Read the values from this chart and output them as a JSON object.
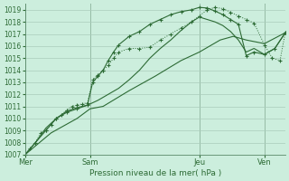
{
  "xlabel": "Pression niveau de la mer( hPa )",
  "background_color": "#cceedd",
  "grid_color": "#aaccbb",
  "line_color": "#2d6b35",
  "ylim": [
    1007,
    1019.5
  ],
  "yticks": [
    1007,
    1008,
    1009,
    1010,
    1011,
    1012,
    1013,
    1014,
    1015,
    1016,
    1017,
    1018,
    1019
  ],
  "xtick_labels": [
    "Mer",
    "Sam",
    "Jeu",
    "Ven"
  ],
  "xtick_positions": [
    0,
    0.25,
    0.67,
    0.92
  ],
  "vline_positions": [
    0.0,
    0.25,
    0.67,
    0.92
  ],
  "curve1_x": [
    0.0,
    0.02,
    0.04,
    0.06,
    0.08,
    0.1,
    0.12,
    0.14,
    0.16,
    0.18,
    0.2,
    0.22,
    0.24,
    0.26,
    0.28,
    0.3,
    0.32,
    0.34,
    0.36,
    0.4,
    0.44,
    0.48,
    0.52,
    0.56,
    0.6,
    0.64,
    0.67,
    0.7,
    0.73,
    0.76,
    0.79,
    0.82,
    0.85,
    0.88,
    0.92,
    0.95,
    0.98,
    1.0
  ],
  "curve1_y": [
    1007.0,
    1007.5,
    1008.0,
    1008.8,
    1009.0,
    1009.5,
    1010.0,
    1010.3,
    1010.7,
    1011.0,
    1011.1,
    1011.2,
    1011.3,
    1013.2,
    1013.6,
    1014.0,
    1014.4,
    1015.0,
    1015.5,
    1015.8,
    1015.8,
    1015.9,
    1016.5,
    1017.0,
    1017.5,
    1018.0,
    1018.5,
    1019.0,
    1019.2,
    1019.1,
    1018.8,
    1018.5,
    1018.2,
    1017.9,
    1016.1,
    1015.0,
    1014.8,
    1017.1
  ],
  "curve2_x": [
    0.0,
    0.04,
    0.08,
    0.12,
    0.16,
    0.2,
    0.24,
    0.26,
    0.28,
    0.3,
    0.32,
    0.34,
    0.36,
    0.4,
    0.44,
    0.48,
    0.52,
    0.56,
    0.6,
    0.64,
    0.67,
    0.7,
    0.73,
    0.76,
    0.79,
    0.82,
    0.85,
    0.88,
    0.92,
    0.96,
    1.0
  ],
  "curve2_y": [
    1007.0,
    1008.0,
    1009.0,
    1010.0,
    1010.5,
    1010.8,
    1011.1,
    1013.0,
    1013.5,
    1014.0,
    1014.8,
    1015.5,
    1016.1,
    1016.8,
    1017.2,
    1017.8,
    1018.2,
    1018.6,
    1018.85,
    1019.0,
    1019.2,
    1019.15,
    1018.9,
    1018.6,
    1018.2,
    1017.8,
    1015.2,
    1015.5,
    1015.3,
    1015.8,
    1017.1
  ],
  "curve3_x": [
    0.0,
    0.04,
    0.08,
    0.12,
    0.16,
    0.2,
    0.24,
    0.28,
    0.32,
    0.36,
    0.4,
    0.44,
    0.48,
    0.52,
    0.56,
    0.6,
    0.64,
    0.67,
    0.7,
    0.73,
    0.76,
    0.79,
    0.82,
    0.85,
    0.88,
    0.92,
    0.96,
    1.0
  ],
  "curve3_y": [
    1007.0,
    1008.0,
    1009.2,
    1010.0,
    1010.6,
    1010.9,
    1011.1,
    1011.5,
    1012.0,
    1012.5,
    1013.2,
    1014.0,
    1015.0,
    1015.8,
    1016.5,
    1017.3,
    1018.0,
    1018.4,
    1018.2,
    1018.0,
    1017.7,
    1017.2,
    1016.5,
    1015.5,
    1015.8,
    1015.3,
    1015.8,
    1017.1
  ],
  "curve4_x": [
    0.0,
    0.1,
    0.2,
    0.25,
    0.3,
    0.4,
    0.5,
    0.6,
    0.67,
    0.75,
    0.8,
    0.85,
    0.92,
    1.0
  ],
  "curve4_y": [
    1007.0,
    1008.8,
    1010.0,
    1010.8,
    1011.0,
    1012.3,
    1013.5,
    1014.8,
    1015.5,
    1016.5,
    1016.8,
    1016.5,
    1016.2,
    1017.1
  ]
}
